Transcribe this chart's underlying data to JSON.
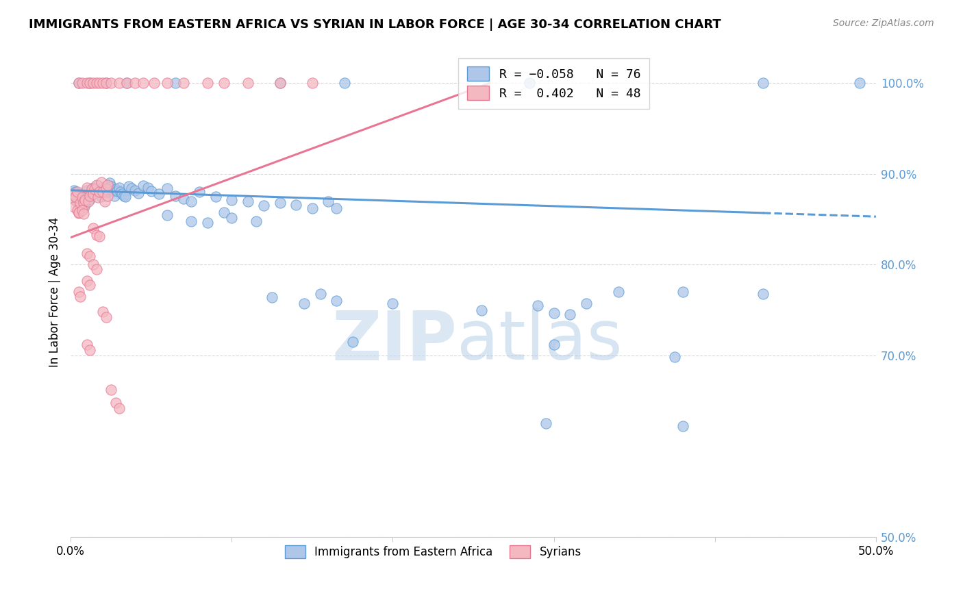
{
  "title": "IMMIGRANTS FROM EASTERN AFRICA VS SYRIAN IN LABOR FORCE | AGE 30-34 CORRELATION CHART",
  "source": "Source: ZipAtlas.com",
  "ylabel": "In Labor Force | Age 30-34",
  "y_ticks": [
    0.5,
    0.7,
    0.8,
    0.9,
    1.0
  ],
  "y_tick_labels": [
    "50.0%",
    "70.0%",
    "80.0%",
    "90.0%",
    "100.0%"
  ],
  "x_range": [
    0.0,
    0.5
  ],
  "y_range": [
    0.57,
    1.04
  ],
  "legend_bottom": [
    "Immigrants from Eastern Africa",
    "Syrians"
  ],
  "blue_scatter": [
    [
      0.001,
      0.877
    ],
    [
      0.002,
      0.882
    ],
    [
      0.002,
      0.873
    ],
    [
      0.003,
      0.88
    ],
    [
      0.003,
      0.871
    ],
    [
      0.004,
      0.876
    ],
    [
      0.004,
      0.869
    ],
    [
      0.005,
      0.878
    ],
    [
      0.005,
      0.871
    ],
    [
      0.006,
      0.875
    ],
    [
      0.006,
      0.867
    ],
    [
      0.007,
      0.875
    ],
    [
      0.007,
      0.868
    ],
    [
      0.008,
      0.876
    ],
    [
      0.008,
      0.869
    ],
    [
      0.009,
      0.873
    ],
    [
      0.009,
      0.866
    ],
    [
      0.01,
      0.871
    ],
    [
      0.01,
      0.882
    ],
    [
      0.011,
      0.876
    ],
    [
      0.012,
      0.872
    ],
    [
      0.013,
      0.877
    ],
    [
      0.013,
      0.882
    ],
    [
      0.014,
      0.885
    ],
    [
      0.015,
      0.879
    ],
    [
      0.016,
      0.883
    ],
    [
      0.017,
      0.887
    ],
    [
      0.018,
      0.88
    ],
    [
      0.019,
      0.875
    ],
    [
      0.02,
      0.885
    ],
    [
      0.021,
      0.883
    ],
    [
      0.022,
      0.88
    ],
    [
      0.023,
      0.887
    ],
    [
      0.024,
      0.89
    ],
    [
      0.025,
      0.886
    ],
    [
      0.026,
      0.881
    ],
    [
      0.027,
      0.876
    ],
    [
      0.028,
      0.883
    ],
    [
      0.029,
      0.881
    ],
    [
      0.03,
      0.885
    ],
    [
      0.031,
      0.88
    ],
    [
      0.032,
      0.878
    ],
    [
      0.033,
      0.876
    ],
    [
      0.034,
      0.875
    ],
    [
      0.036,
      0.886
    ],
    [
      0.038,
      0.884
    ],
    [
      0.04,
      0.882
    ],
    [
      0.042,
      0.879
    ],
    [
      0.045,
      0.887
    ],
    [
      0.048,
      0.885
    ],
    [
      0.05,
      0.881
    ],
    [
      0.055,
      0.878
    ],
    [
      0.06,
      0.884
    ],
    [
      0.065,
      0.876
    ],
    [
      0.07,
      0.873
    ],
    [
      0.075,
      0.87
    ],
    [
      0.08,
      0.88
    ],
    [
      0.09,
      0.875
    ],
    [
      0.1,
      0.871
    ],
    [
      0.11,
      0.87
    ],
    [
      0.12,
      0.865
    ],
    [
      0.13,
      0.868
    ],
    [
      0.14,
      0.866
    ],
    [
      0.15,
      0.862
    ],
    [
      0.16,
      0.87
    ],
    [
      0.165,
      0.862
    ],
    [
      0.06,
      0.855
    ],
    [
      0.075,
      0.848
    ],
    [
      0.085,
      0.846
    ],
    [
      0.095,
      0.858
    ],
    [
      0.1,
      0.852
    ],
    [
      0.115,
      0.848
    ],
    [
      0.125,
      0.764
    ],
    [
      0.145,
      0.757
    ],
    [
      0.155,
      0.768
    ],
    [
      0.165,
      0.76
    ],
    [
      0.2,
      0.757
    ],
    [
      0.255,
      0.75
    ],
    [
      0.3,
      0.747
    ],
    [
      0.31,
      0.745
    ],
    [
      0.34,
      0.77
    ],
    [
      0.38,
      0.77
    ],
    [
      0.29,
      0.755
    ],
    [
      0.32,
      0.757
    ],
    [
      0.43,
      0.768
    ],
    [
      0.175,
      0.715
    ],
    [
      0.3,
      0.712
    ],
    [
      0.375,
      0.698
    ],
    [
      0.38,
      0.622
    ],
    [
      0.295,
      0.625
    ],
    [
      0.005,
      1.0
    ],
    [
      0.012,
      1.0
    ],
    [
      0.022,
      1.0
    ],
    [
      0.035,
      1.0
    ],
    [
      0.065,
      1.0
    ],
    [
      0.13,
      1.0
    ],
    [
      0.17,
      1.0
    ],
    [
      0.285,
      1.0
    ],
    [
      0.43,
      1.0
    ],
    [
      0.49,
      1.0
    ]
  ],
  "pink_scatter": [
    [
      0.001,
      0.878
    ],
    [
      0.002,
      0.872
    ],
    [
      0.002,
      0.864
    ],
    [
      0.003,
      0.875
    ],
    [
      0.004,
      0.88
    ],
    [
      0.004,
      0.86
    ],
    [
      0.005,
      0.857
    ],
    [
      0.006,
      0.868
    ],
    [
      0.007,
      0.874
    ],
    [
      0.008,
      0.862
    ],
    [
      0.008,
      0.869
    ],
    [
      0.009,
      0.871
    ],
    [
      0.01,
      0.885
    ],
    [
      0.011,
      0.87
    ],
    [
      0.012,
      0.876
    ],
    [
      0.013,
      0.883
    ],
    [
      0.014,
      0.878
    ],
    [
      0.015,
      0.883
    ],
    [
      0.016,
      0.888
    ],
    [
      0.017,
      0.874
    ],
    [
      0.018,
      0.88
    ],
    [
      0.019,
      0.891
    ],
    [
      0.02,
      0.88
    ],
    [
      0.021,
      0.87
    ],
    [
      0.022,
      0.883
    ],
    [
      0.023,
      0.876
    ],
    [
      0.023,
      0.888
    ],
    [
      0.005,
      0.858
    ],
    [
      0.007,
      0.86
    ],
    [
      0.008,
      0.856
    ],
    [
      0.014,
      0.84
    ],
    [
      0.016,
      0.833
    ],
    [
      0.018,
      0.831
    ],
    [
      0.01,
      0.812
    ],
    [
      0.012,
      0.809
    ],
    [
      0.01,
      0.782
    ],
    [
      0.012,
      0.778
    ],
    [
      0.014,
      0.8
    ],
    [
      0.016,
      0.795
    ],
    [
      0.005,
      0.77
    ],
    [
      0.006,
      0.765
    ],
    [
      0.01,
      0.712
    ],
    [
      0.012,
      0.706
    ],
    [
      0.02,
      0.748
    ],
    [
      0.022,
      0.742
    ],
    [
      0.025,
      0.662
    ],
    [
      0.028,
      0.648
    ],
    [
      0.03,
      0.642
    ],
    [
      0.005,
      1.0
    ],
    [
      0.007,
      1.0
    ],
    [
      0.01,
      1.0
    ],
    [
      0.012,
      1.0
    ],
    [
      0.014,
      1.0
    ],
    [
      0.016,
      1.0
    ],
    [
      0.018,
      1.0
    ],
    [
      0.02,
      1.0
    ],
    [
      0.022,
      1.0
    ],
    [
      0.025,
      1.0
    ],
    [
      0.03,
      1.0
    ],
    [
      0.035,
      1.0
    ],
    [
      0.04,
      1.0
    ],
    [
      0.045,
      1.0
    ],
    [
      0.052,
      1.0
    ],
    [
      0.06,
      1.0
    ],
    [
      0.07,
      1.0
    ],
    [
      0.085,
      1.0
    ],
    [
      0.095,
      1.0
    ],
    [
      0.11,
      1.0
    ],
    [
      0.13,
      1.0
    ],
    [
      0.15,
      1.0
    ]
  ],
  "blue_line_solid": {
    "x": [
      0.0,
      0.43
    ],
    "y": [
      0.882,
      0.857
    ]
  },
  "blue_line_dashed": {
    "x": [
      0.43,
      0.5
    ],
    "y": [
      0.857,
      0.853
    ]
  },
  "pink_line": {
    "x": [
      0.0,
      0.26
    ],
    "y": [
      0.83,
      1.0
    ]
  },
  "blue_color": "#5b9bd5",
  "pink_color": "#e87693",
  "blue_scatter_color": "#aec6e8",
  "pink_scatter_color": "#f4b8c1",
  "blue_scatter_edge": "#5b9bd5",
  "pink_scatter_edge": "#e87693",
  "watermark_left": "ZIP",
  "watermark_right": "atlas",
  "background_color": "#ffffff",
  "grid_color": "#d8d8d8"
}
